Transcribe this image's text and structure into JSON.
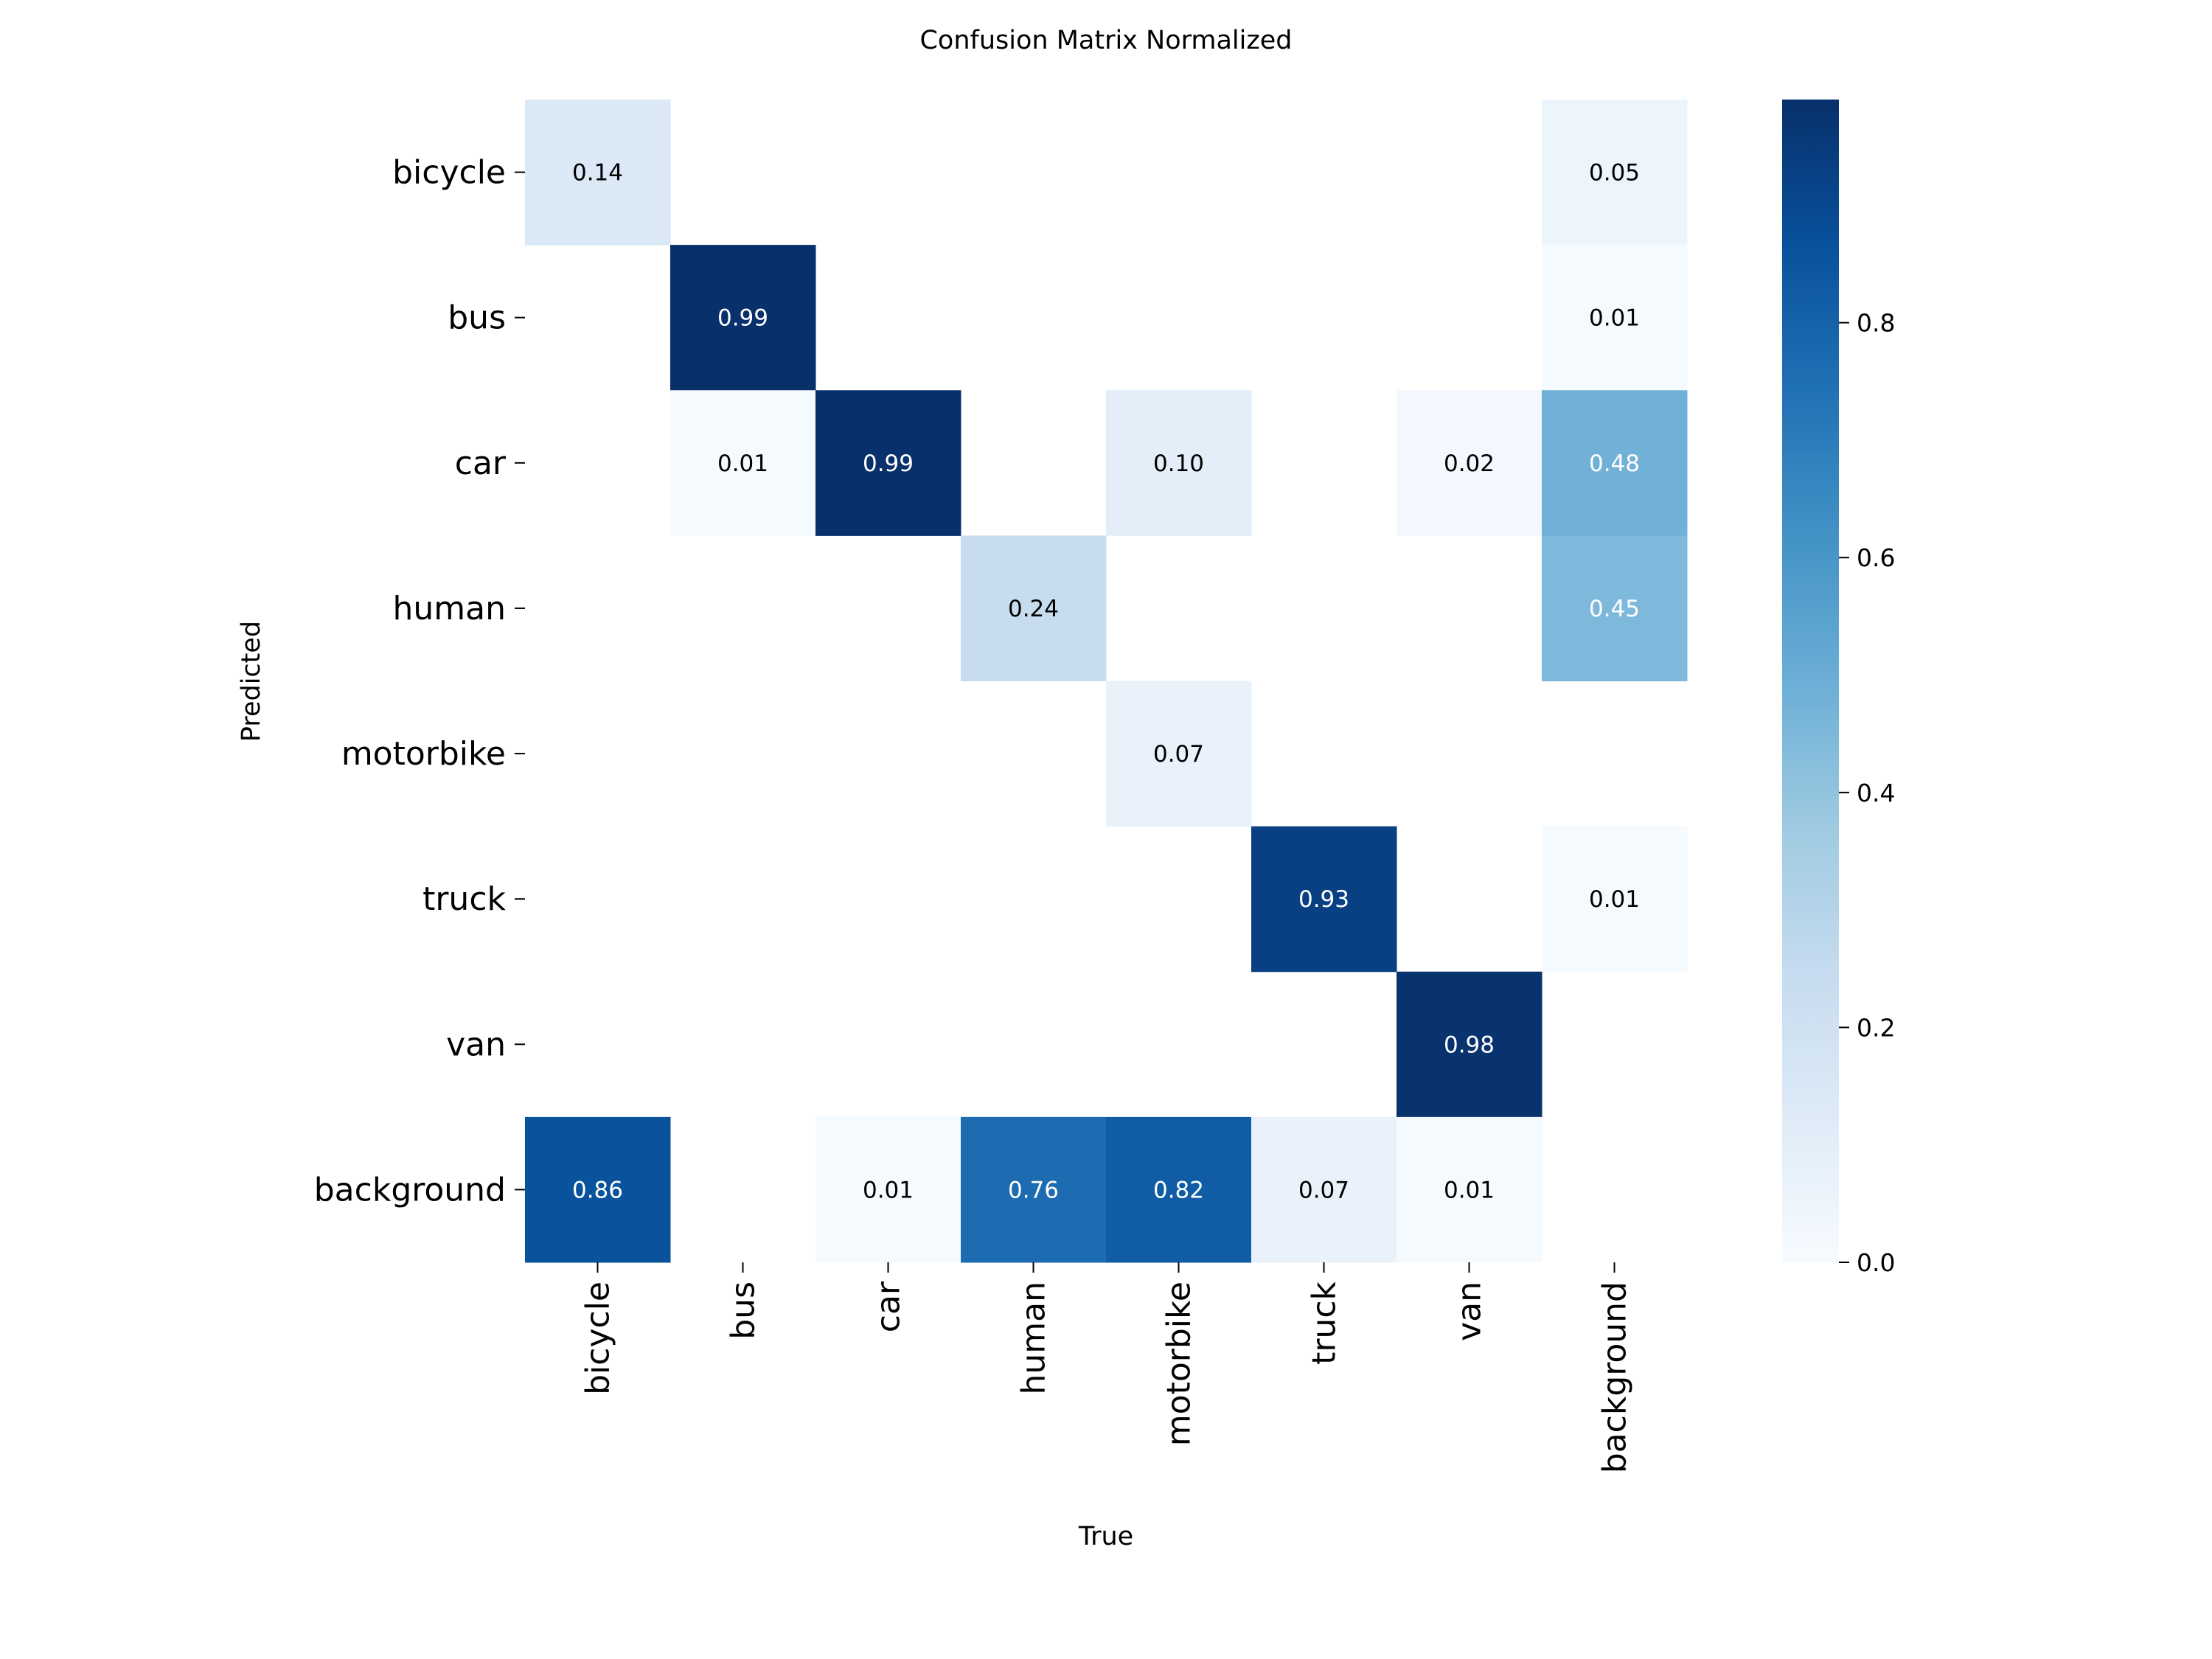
{
  "chart_data": {
    "type": "heatmap",
    "title": "Confusion Matrix Normalized",
    "xlabel": "True",
    "ylabel": "Predicted",
    "x_categories": [
      "bicycle",
      "bus",
      "car",
      "human",
      "motorbike",
      "truck",
      "van",
      "background"
    ],
    "y_categories": [
      "bicycle",
      "bus",
      "car",
      "human",
      "motorbike",
      "truck",
      "van",
      "background"
    ],
    "values": [
      [
        0.14,
        null,
        null,
        null,
        null,
        null,
        null,
        0.05
      ],
      [
        null,
        0.99,
        null,
        null,
        null,
        null,
        null,
        0.01
      ],
      [
        null,
        0.01,
        0.99,
        null,
        0.1,
        null,
        0.02,
        0.48
      ],
      [
        null,
        null,
        null,
        0.24,
        null,
        null,
        null,
        0.45
      ],
      [
        null,
        null,
        null,
        null,
        0.07,
        null,
        null,
        null
      ],
      [
        null,
        null,
        null,
        null,
        null,
        0.93,
        null,
        0.01
      ],
      [
        null,
        null,
        null,
        null,
        null,
        null,
        0.98,
        null
      ],
      [
        0.86,
        null,
        0.01,
        0.76,
        0.82,
        0.07,
        0.01,
        null
      ]
    ],
    "colormap": "Blues",
    "colorbar": {
      "range": [
        0.0,
        0.99
      ],
      "ticks": [
        "0.0",
        "0.2",
        "0.4",
        "0.6",
        "0.8"
      ]
    },
    "grid": false
  }
}
